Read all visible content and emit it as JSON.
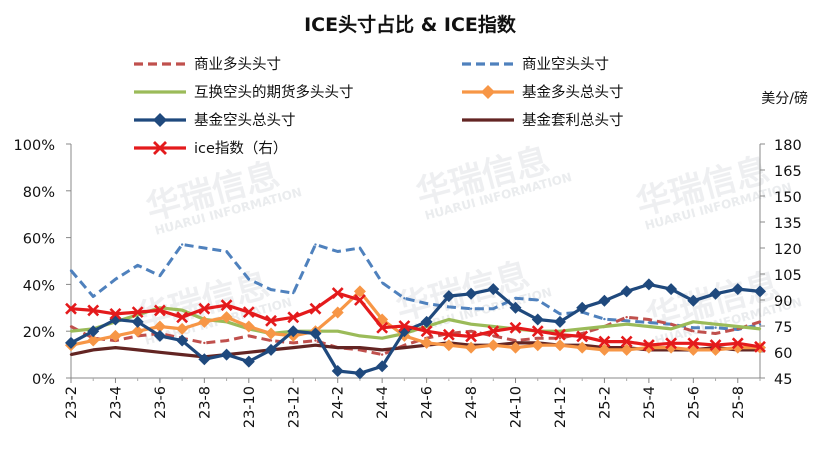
{
  "chart_data": {
    "type": "line",
    "title": "ICE头寸占比 & ICE指数",
    "right_axis_label": "美分/磅",
    "watermark": "华瑞信息 HUARUI INFORMATION",
    "x_ticks": [
      "23-2",
      "23-4",
      "23-6",
      "23-8",
      "23-10",
      "23-12",
      "24-2",
      "24-4",
      "24-6",
      "24-8",
      "24-10",
      "24-12",
      "25-2",
      "25-4",
      "25-6",
      "25-8"
    ],
    "y_left": {
      "min": 0,
      "max": 100,
      "ticks": [
        "0%",
        "20%",
        "40%",
        "60%",
        "80%",
        "100%"
      ]
    },
    "y_right": {
      "min": 45,
      "max": 180,
      "ticks": [
        "45",
        "60",
        "75",
        "90",
        "105",
        "120",
        "135",
        "150",
        "165",
        "180"
      ]
    },
    "grid": false,
    "x": [
      "2023-02",
      "2023-03",
      "2023-04",
      "2023-05",
      "2023-06",
      "2023-07",
      "2023-08",
      "2023-09",
      "2023-10",
      "2023-11",
      "2023-12",
      "2024-01",
      "2024-02",
      "2024-03",
      "2024-04",
      "2024-05",
      "2024-06",
      "2024-07",
      "2024-08",
      "2024-09",
      "2024-10",
      "2024-11",
      "2024-12",
      "2025-01",
      "2025-02",
      "2025-03",
      "2025-04",
      "2025-05",
      "2025-06",
      "2025-07",
      "2025-08",
      "2025-09"
    ],
    "series": [
      {
        "name": "商业多头头寸",
        "axis": "left",
        "color": "#c0504d",
        "style": "dashed",
        "values": [
          22,
          17,
          16,
          18,
          19,
          17,
          15,
          16,
          18,
          16,
          15,
          16,
          13,
          12,
          10,
          14,
          17,
          19,
          20,
          18,
          16,
          17,
          17,
          19,
          22,
          26,
          25,
          23,
          20,
          19,
          21,
          24
        ]
      },
      {
        "name": "商业空头头寸",
        "axis": "right",
        "color": "#4f81bd",
        "style": "dashed",
        "values": [
          107,
          92,
          102,
          110,
          104,
          122,
          120,
          118,
          102,
          96,
          94,
          122,
          118,
          120,
          100,
          91,
          88,
          86,
          85,
          85,
          91,
          90,
          82,
          83,
          79,
          78,
          77,
          76,
          74,
          74,
          73,
          76
        ]
      },
      {
        "name": "互换空头的期货多头头寸",
        "axis": "left",
        "color": "#9bbb59",
        "style": "solid",
        "values": [
          20,
          21,
          24,
          27,
          30,
          29,
          25,
          24,
          21,
          19,
          20,
          20,
          20,
          18,
          17,
          19,
          22,
          25,
          23,
          22,
          21,
          20,
          20,
          21,
          22,
          23,
          22,
          21,
          24,
          23,
          22,
          21
        ]
      },
      {
        "name": "基金多头总头寸",
        "axis": "left",
        "color": "#f79646",
        "style": "solid",
        "marker": "diamond",
        "values": [
          14,
          16,
          18,
          20,
          22,
          21,
          24,
          26,
          22,
          19,
          18,
          20,
          28,
          37,
          25,
          18,
          15,
          14,
          13,
          14,
          13,
          14,
          14,
          13,
          12,
          12,
          13,
          13,
          12,
          12,
          13,
          13
        ]
      },
      {
        "name": "基金空头总头寸",
        "axis": "left",
        "color": "#1f497d",
        "style": "solid",
        "marker": "diamond",
        "values": [
          15,
          20,
          25,
          24,
          18,
          16,
          8,
          10,
          7,
          12,
          20,
          19,
          3,
          2,
          5,
          20,
          24,
          35,
          36,
          38,
          30,
          25,
          24,
          30,
          33,
          37,
          40,
          38,
          33,
          36,
          38,
          37
        ]
      },
      {
        "name": "基金套利总头寸",
        "axis": "left",
        "color": "#632523",
        "style": "solid",
        "values": [
          10,
          12,
          13,
          12,
          11,
          10,
          9,
          10,
          11,
          12,
          13,
          14,
          13,
          13,
          12,
          13,
          14,
          15,
          14,
          14,
          15,
          15,
          14,
          14,
          13,
          13,
          12,
          12,
          12,
          13,
          12,
          12
        ]
      },
      {
        "name": "ice指数（右）",
        "axis": "right",
        "color": "#e41a1c",
        "style": "solid",
        "marker": "x",
        "values": [
          85,
          84,
          82,
          83,
          84,
          80,
          85,
          87,
          83,
          78,
          80,
          85,
          94,
          90,
          74,
          75,
          72,
          70,
          69,
          72,
          74,
          72,
          70,
          69,
          66,
          66,
          64,
          65,
          65,
          64,
          65,
          63
        ]
      }
    ]
  }
}
